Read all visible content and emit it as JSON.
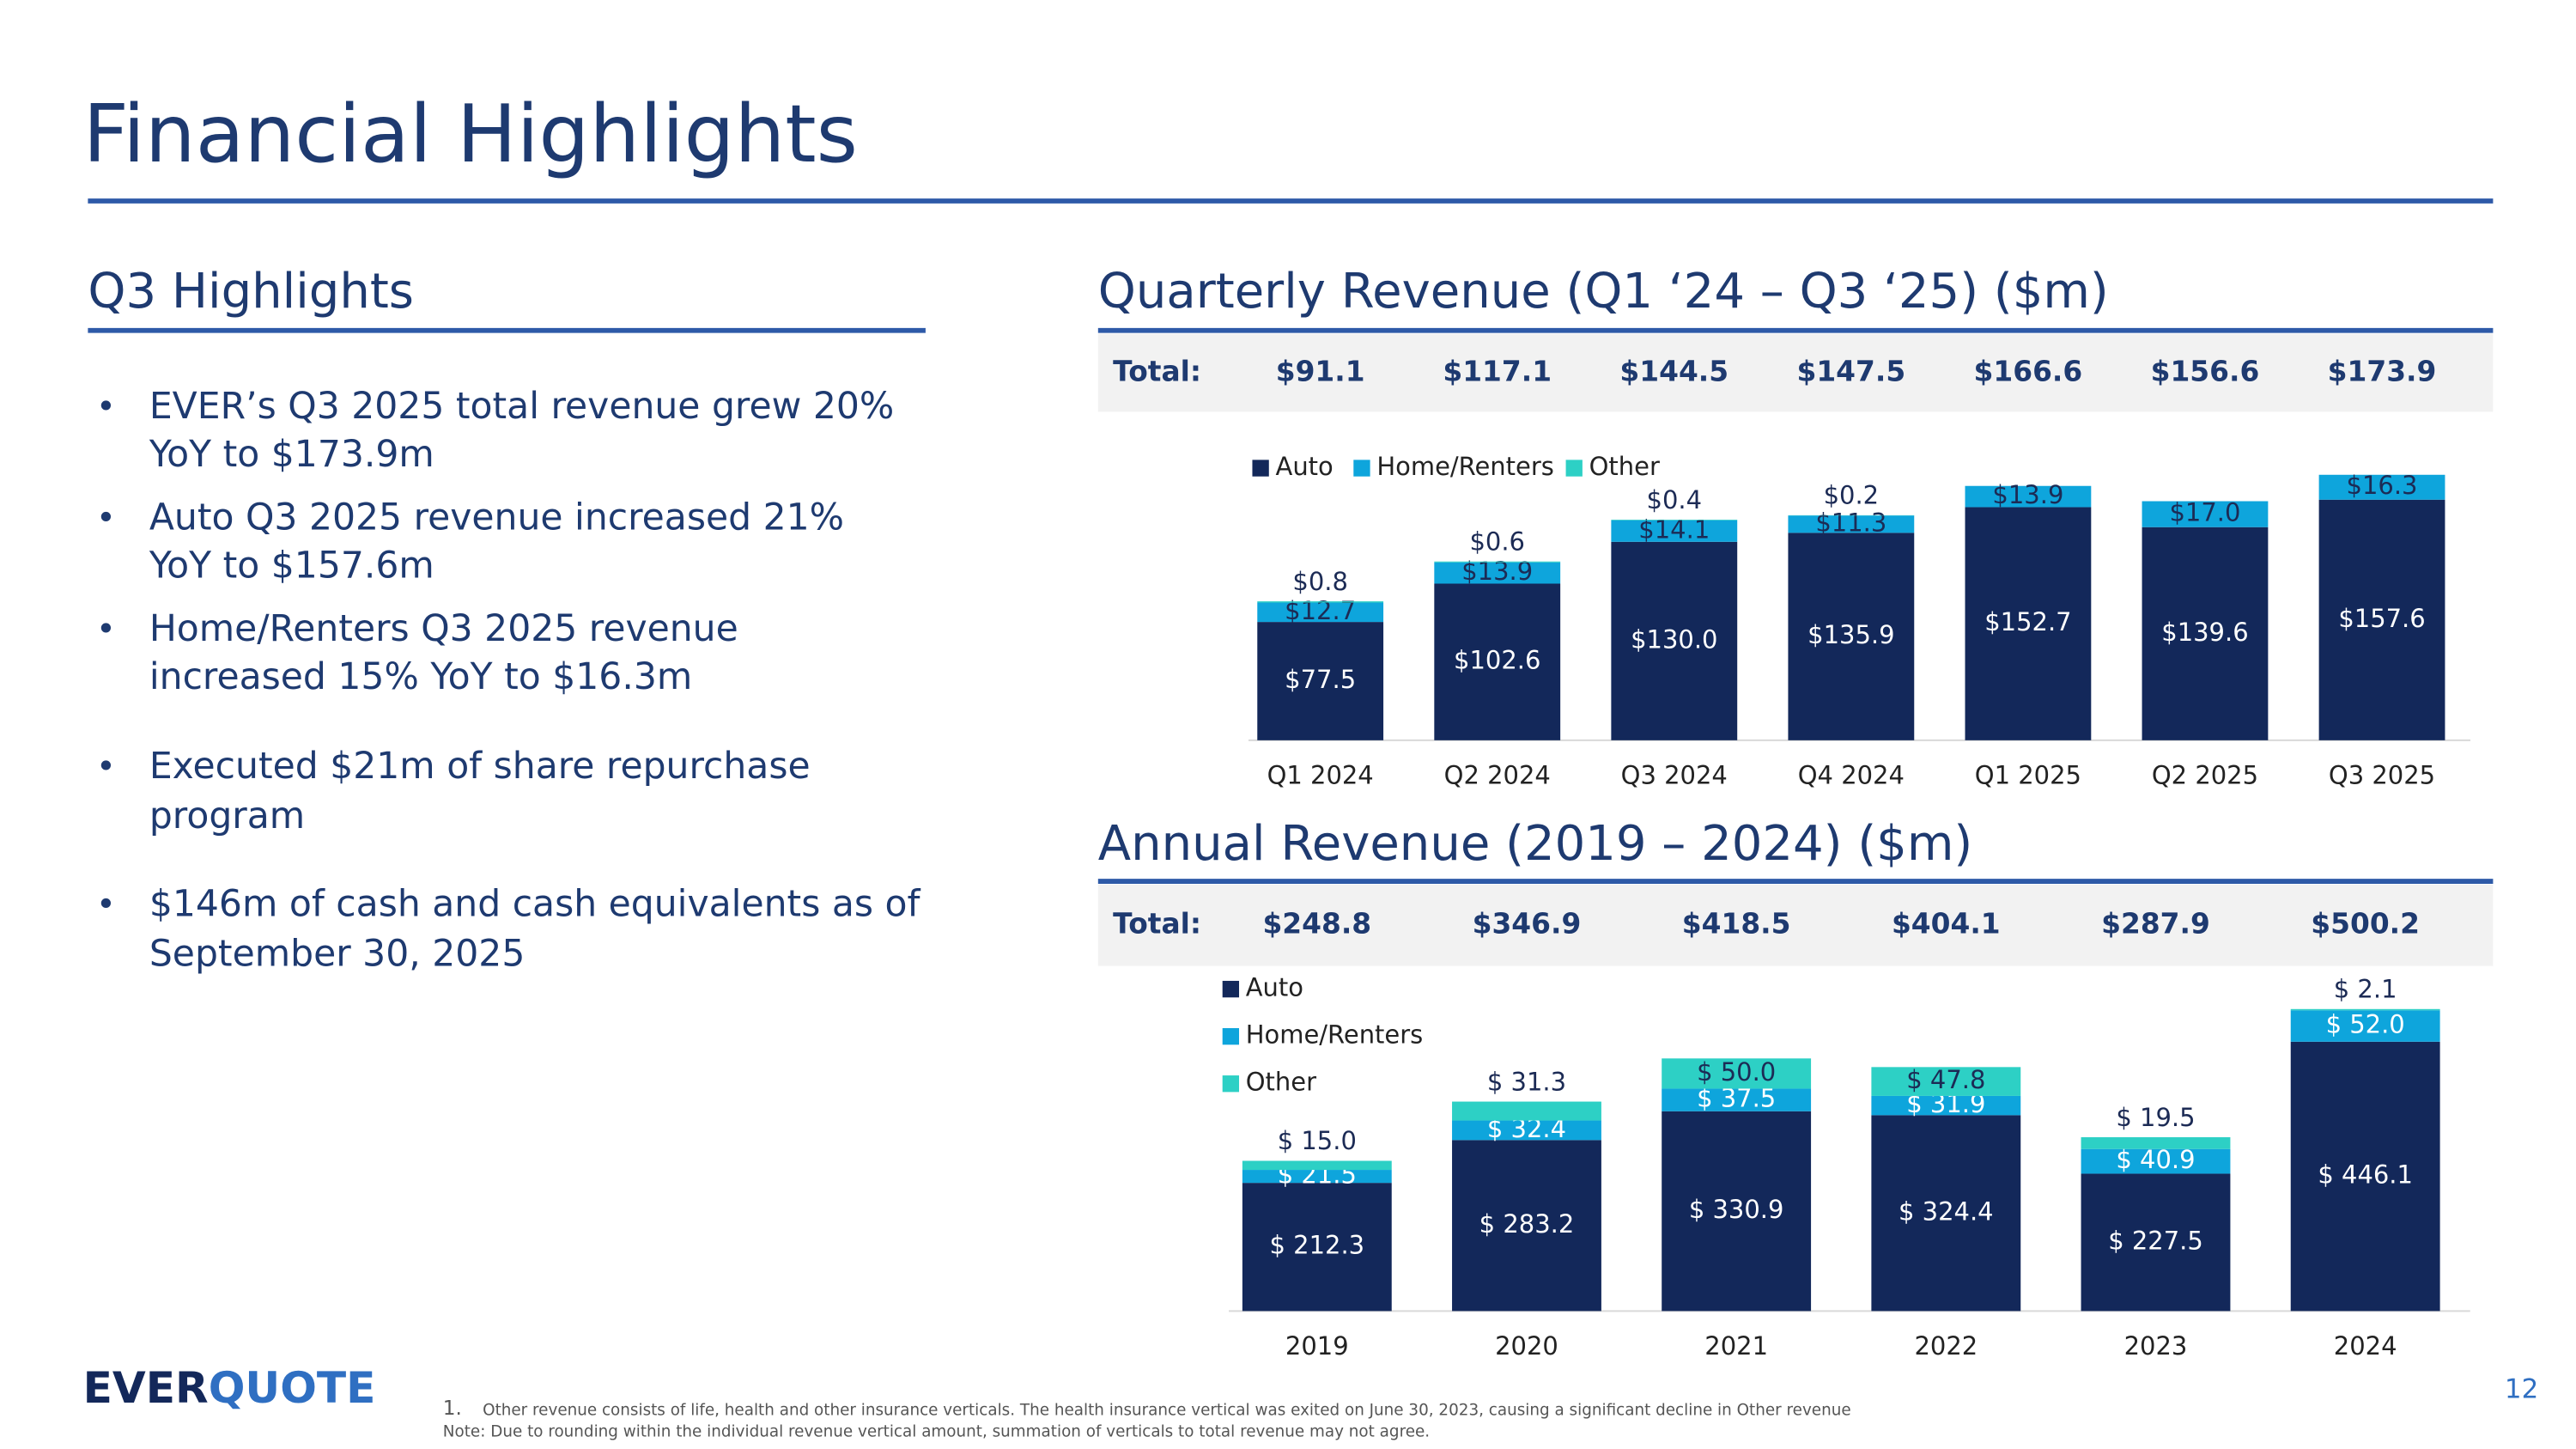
{
  "header": {
    "title": "Financial Highlights"
  },
  "highlights": {
    "title": "Q3 Highlights",
    "bullets": [
      [
        "EVER’s Q3 2025 total revenue grew 20%",
        "YoY to $173.9m"
      ],
      [
        "Auto Q3 2025 revenue increased 21%",
        "YoY  to $157.6m"
      ],
      [
        "Home/Renters Q3 2025 revenue",
        "increased 15% YoY to $16.3m"
      ],
      [
        "Executed $21m of share repurchase",
        "program"
      ],
      [
        "$146m of cash and cash equivalents as of",
        "September 30, 2025"
      ]
    ]
  },
  "chart_data": [
    {
      "type": "bar",
      "stacked": true,
      "title": "Quarterly Revenue (Q1 ‘24 – Q3 ‘25) ($m)",
      "total_label": "Total:",
      "totals": [
        "$91.1",
        "$117.1",
        "$144.5",
        "$147.5",
        "$166.6",
        "$156.6",
        "$173.9"
      ],
      "categories": [
        "Q1 2024",
        "Q2 2024",
        "Q3 2024",
        "Q4 2024",
        "Q1 2025",
        "Q2 2025",
        "Q3 2025"
      ],
      "series": [
        {
          "name": "Auto",
          "color": "#13285a",
          "values": [
            77.5,
            102.6,
            130.0,
            135.9,
            152.7,
            139.6,
            157.6
          ],
          "value_labels": [
            "$77.5",
            "$102.6",
            "$130.0",
            "$135.9",
            "$152.7",
            "$139.6",
            "$157.6"
          ]
        },
        {
          "name": "Home/Renters",
          "color": "#0ea5dc",
          "values": [
            12.7,
            13.9,
            14.1,
            11.3,
            13.9,
            17.0,
            16.3
          ],
          "value_labels": [
            "$12.7",
            "$13.9",
            "$14.1",
            "$11.3",
            "$13.9",
            "$17.0",
            "$16.3"
          ]
        },
        {
          "name": "Other",
          "color": "#2dd0c5",
          "values": [
            0.8,
            0.6,
            0.4,
            0.2,
            null,
            null,
            null
          ],
          "value_labels": [
            "$0.8",
            "$0.6",
            "$0.4",
            "$0.2",
            null,
            null,
            null
          ]
        }
      ]
    },
    {
      "type": "bar",
      "stacked": true,
      "title": "Annual Revenue (2019 – 2024) ($m)",
      "total_label": "Total:",
      "totals": [
        "$248.8",
        "$346.9",
        "$418.5",
        "$404.1",
        "$287.9",
        "$500.2"
      ],
      "categories": [
        "2019",
        "2020",
        "2021",
        "2022",
        "2023",
        "2024"
      ],
      "series": [
        {
          "name": "Auto",
          "color": "#13285a",
          "values": [
            212.3,
            283.2,
            330.9,
            324.4,
            227.5,
            446.1
          ],
          "value_labels": [
            "$ 212.3",
            "$ 283.2",
            "$ 330.9",
            "$ 324.4",
            "$ 227.5",
            "$ 446.1"
          ]
        },
        {
          "name": "Home/Renters",
          "color": "#0ea5dc",
          "values": [
            21.5,
            32.4,
            37.5,
            31.9,
            40.9,
            52.0
          ],
          "value_labels": [
            "$ 21.5",
            "$ 32.4",
            "$ 37.5",
            "$ 31.9",
            "$ 40.9",
            "$ 52.0"
          ]
        },
        {
          "name": "Other",
          "color": "#2dd0c5",
          "values": [
            15.0,
            31.3,
            50.0,
            47.8,
            19.5,
            2.1
          ],
          "value_labels": [
            "$ 15.0",
            "$ 31.3",
            "$ 50.0",
            "$ 47.8",
            "$ 19.5",
            "$ 2.1"
          ]
        }
      ]
    }
  ],
  "logo": [
    "EVER",
    "QUOTE"
  ],
  "page_number": "12",
  "footnotes": {
    "marker": "1.",
    "text": "Other revenue consists of life, health and other insurance verticals. The health insurance vertical was exited on June 30, 2023, causing a significant decline in Other revenue",
    "note": "Note: Due to rounding within the individual revenue vertical amount, summation of verticals to total revenue may not agree."
  }
}
